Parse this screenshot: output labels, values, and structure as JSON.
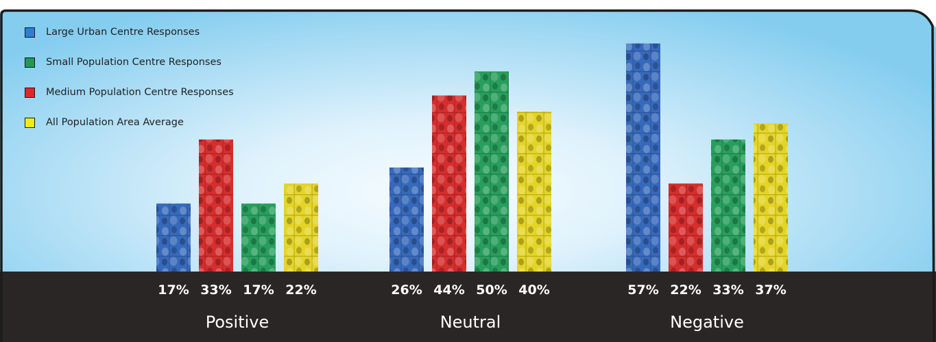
{
  "chart_data": {
    "type": "bar",
    "categories": [
      "Positive",
      "Neutral",
      "Negative"
    ],
    "series": [
      {
        "name": "Large Urban Centre Responses",
        "color": "#2f63b8",
        "values": [
          17,
          26,
          57
        ],
        "labels": [
          "17%",
          "26%",
          "57%"
        ]
      },
      {
        "name": "Medium Population Centre Responses",
        "color": "#d42424",
        "values": [
          33,
          44,
          22
        ],
        "labels": [
          "33%",
          "44%",
          "22%"
        ]
      },
      {
        "name": "Small Population Centre Responses",
        "color": "#1f9a55",
        "values": [
          17,
          50,
          33
        ],
        "labels": [
          "17%",
          "50%",
          "33%"
        ]
      },
      {
        "name": "All Population Area Average",
        "color": "#e3d21d",
        "values": [
          22,
          40,
          37
        ],
        "labels": [
          "22%",
          "40%",
          "37%"
        ]
      }
    ],
    "legend_order": [
      0,
      2,
      1,
      3
    ],
    "legend_position": "top-left",
    "ylim": [
      0,
      60
    ],
    "grid": false,
    "title": "",
    "xlabel": "",
    "ylabel": ""
  },
  "colors": {
    "background_light": "#f4fbff",
    "background_sky": "#8dd0f0",
    "baseline_band": "#2b2626",
    "frame": "#1c1c1c"
  }
}
